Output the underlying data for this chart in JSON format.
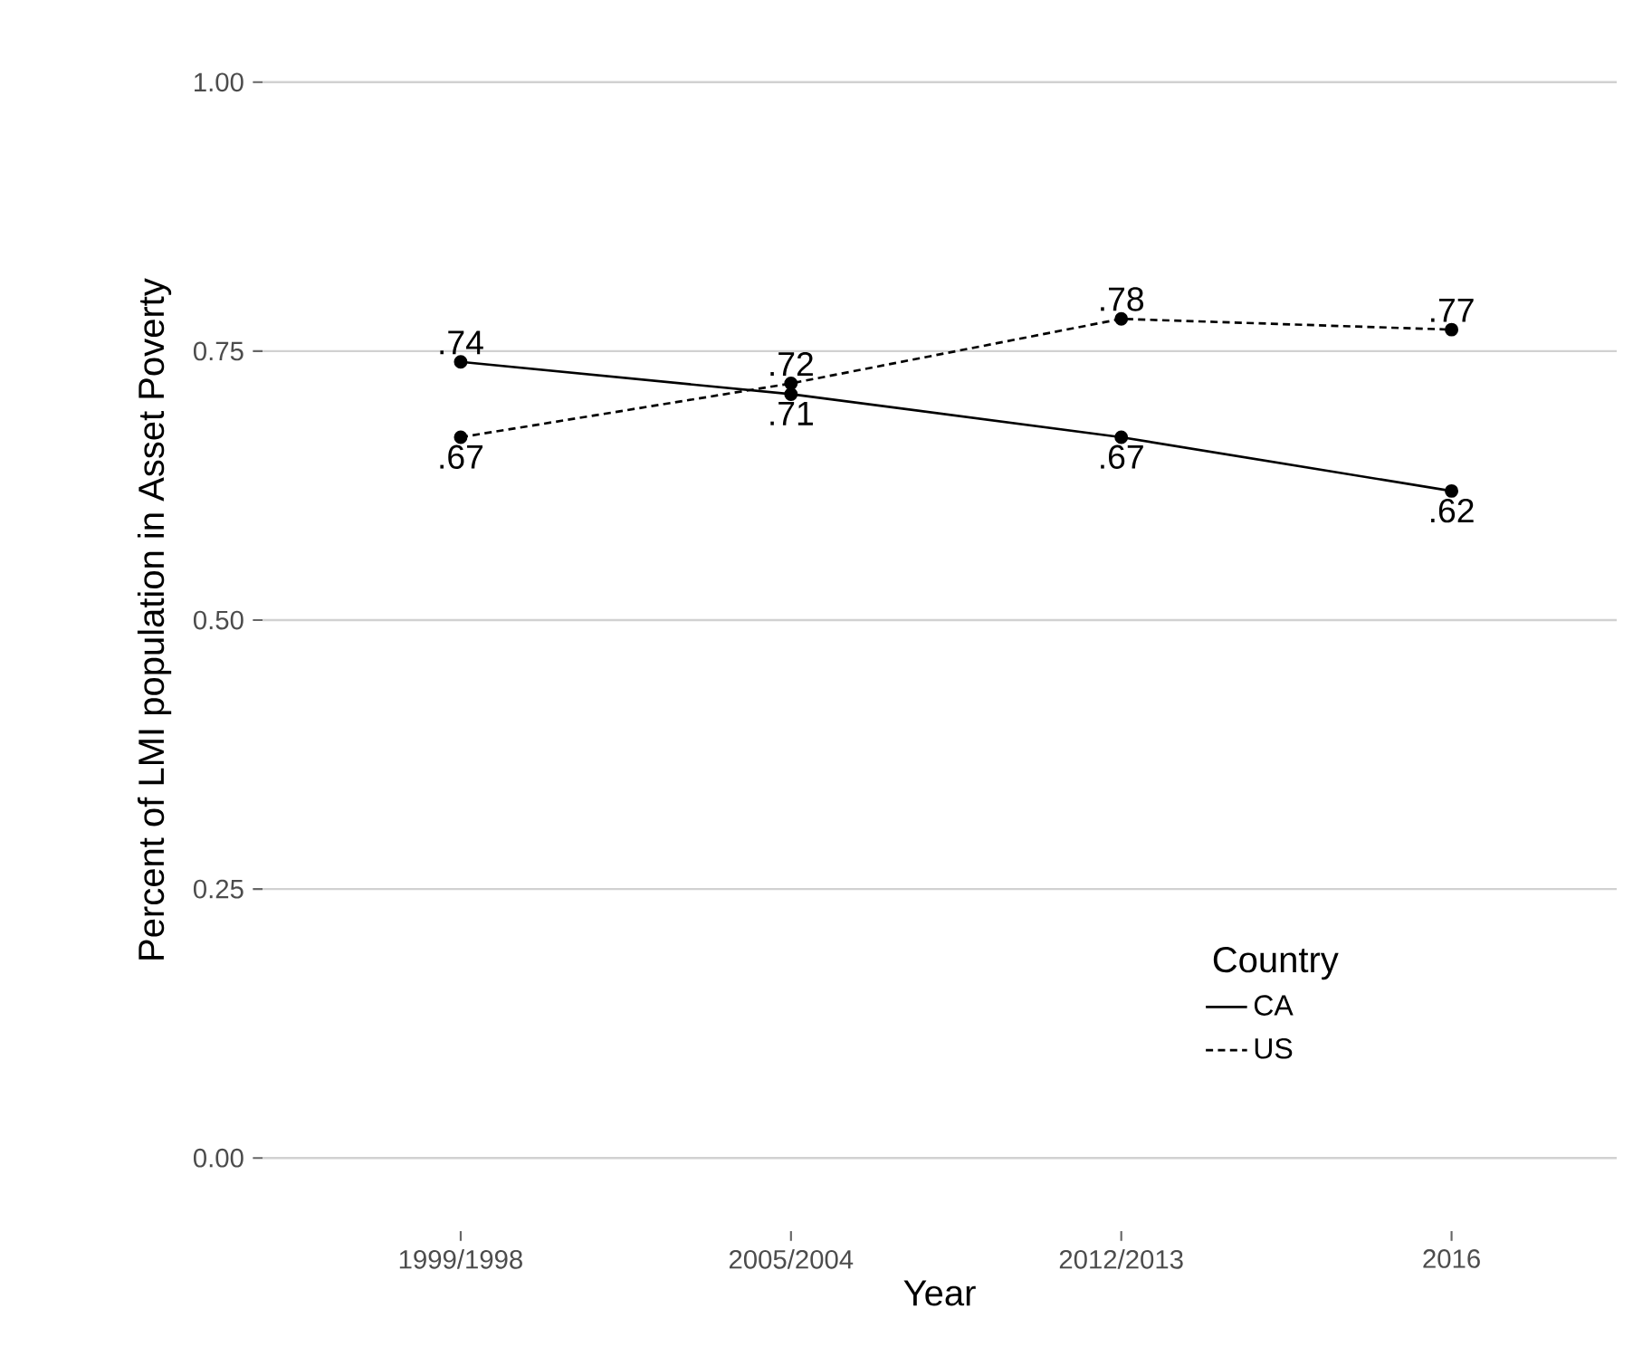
{
  "chart_data": {
    "type": "line",
    "xlabel": "Year",
    "ylabel": "Percent of LMI population in Asset Poverty",
    "legend_title": "Country",
    "categories": [
      "1999/1998",
      "2005/2004",
      "2012/2013",
      "2016"
    ],
    "series": [
      {
        "name": "CA",
        "color": "#000000",
        "line_style": "solid",
        "values": [
          0.74,
          0.71,
          0.67,
          0.62
        ],
        "value_labels": [
          ".74",
          ".71",
          ".67",
          ".62"
        ]
      },
      {
        "name": "US",
        "color": "#000000",
        "line_style": "dashed",
        "values": [
          0.67,
          0.72,
          0.78,
          0.77
        ],
        "value_labels": [
          ".67",
          ".72",
          ".78",
          ".77"
        ]
      }
    ],
    "ylim": [
      0,
      1
    ],
    "yticks": [
      {
        "value": 0,
        "label": "0.00"
      },
      {
        "value": 0.25,
        "label": "0.25"
      },
      {
        "value": 0.5,
        "label": "0.50"
      },
      {
        "value": 0.75,
        "label": "0.75"
      },
      {
        "value": 1,
        "label": "1.00"
      }
    ],
    "grid": "y",
    "legend": "bottom right",
    "marker": "circle"
  }
}
